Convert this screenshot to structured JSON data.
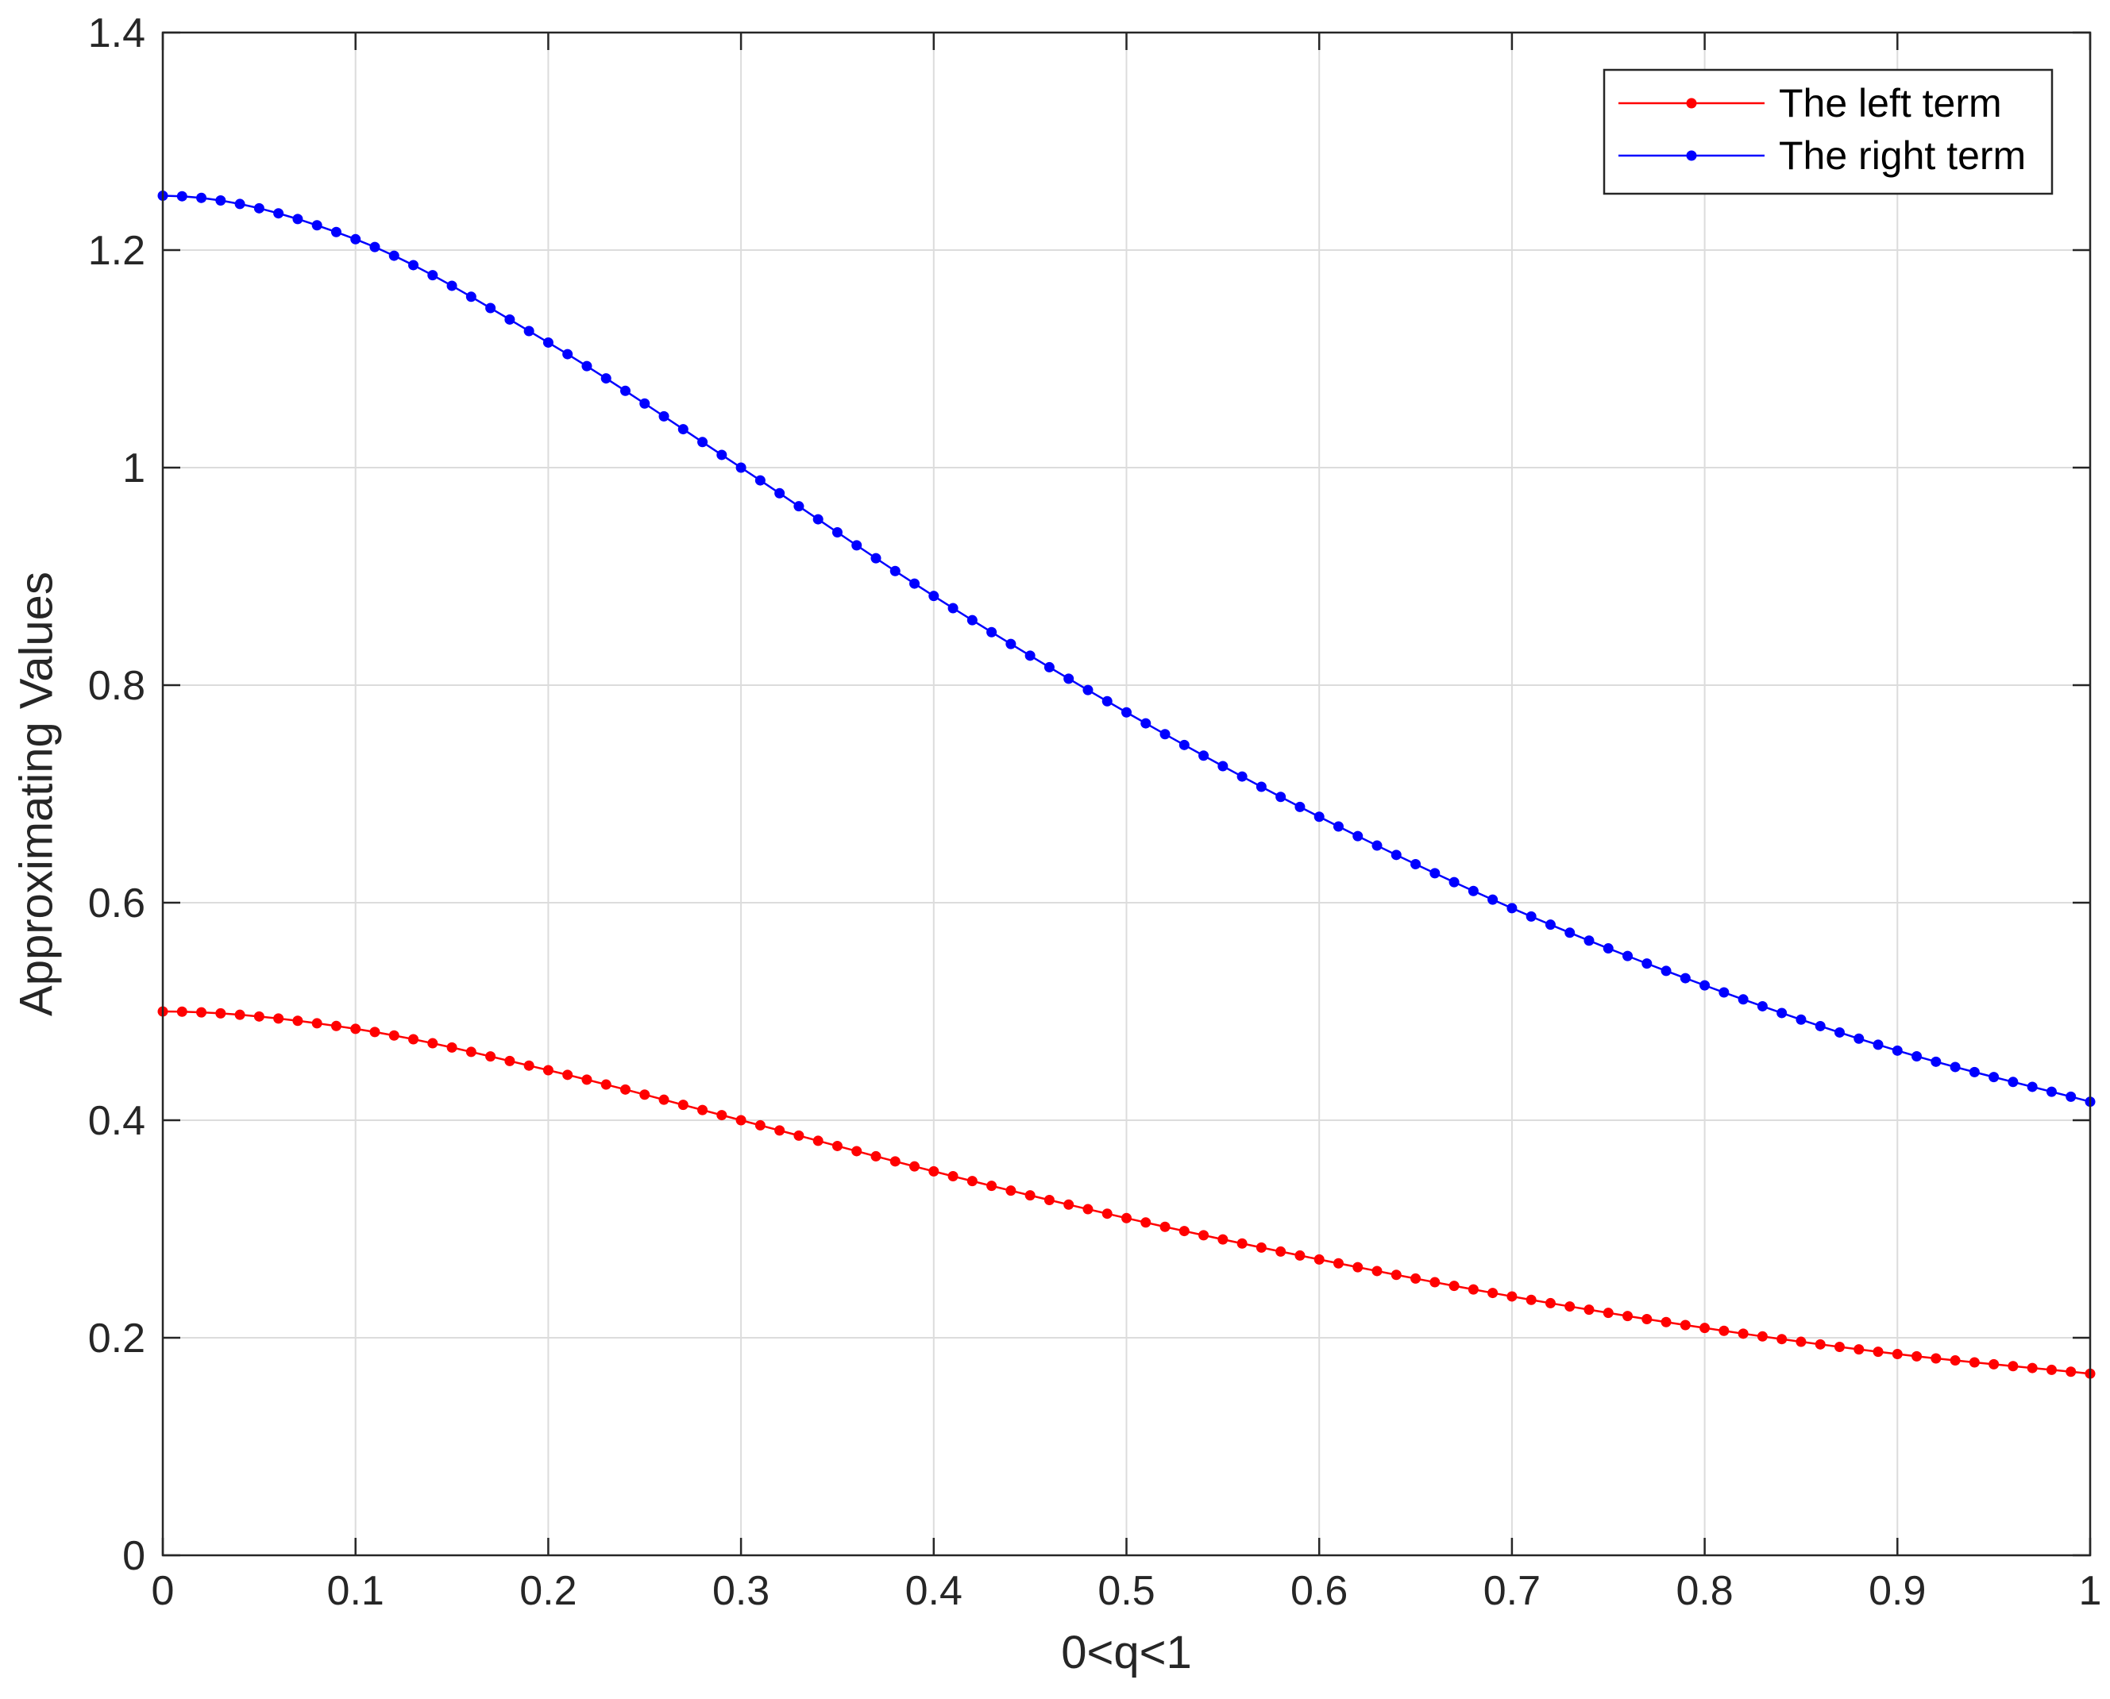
{
  "chart_data": {
    "type": "line",
    "title": "",
    "xlabel": "0<q<1",
    "ylabel": "Approximating Values",
    "xlim": [
      0,
      1
    ],
    "ylim": [
      0,
      1.4
    ],
    "xticks": [
      "0",
      "0.1",
      "0.2",
      "0.3",
      "0.4",
      "0.5",
      "0.6",
      "0.7",
      "0.8",
      "0.9",
      "1"
    ],
    "yticks": [
      "0",
      "0.2",
      "0.4",
      "0.6",
      "0.8",
      "1",
      "1.2",
      "1.4"
    ],
    "grid": true,
    "legend_position": "top-right",
    "x": [
      0,
      0.1,
      0.2,
      0.3,
      0.4,
      0.5,
      0.6,
      0.7,
      0.8,
      0.9,
      1.0
    ],
    "series": [
      {
        "name": "The left term",
        "color": "#ff0000",
        "marker": "dot",
        "values": [
          0.5,
          0.484,
          0.446,
          0.4,
          0.353,
          0.31,
          0.272,
          0.238,
          0.209,
          0.185,
          0.167
        ]
      },
      {
        "name": "The right term",
        "color": "#0000ff",
        "marker": "dot",
        "values": [
          1.25,
          1.21,
          1.115,
          1.0,
          0.882,
          0.775,
          0.679,
          0.595,
          0.524,
          0.464,
          0.417
        ]
      }
    ]
  }
}
